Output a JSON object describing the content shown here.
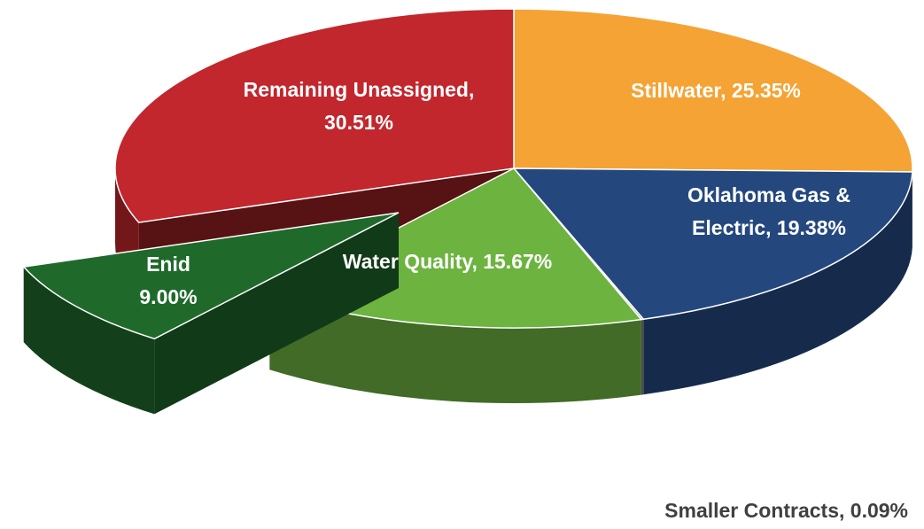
{
  "chart_data": {
    "type": "pie3d",
    "value_labels": [
      [
        "Stillwater, 25.35%"
      ],
      [
        "Oklahoma Gas &",
        "Electric, 19.38%"
      ],
      [
        "Smaller Contracts, 0.09%"
      ],
      [
        "Water Quality, 15.67%"
      ],
      [
        "Enid",
        "9.00%"
      ],
      [
        "Remaining Unassigned,",
        "30.51%"
      ]
    ],
    "values": [
      25.35,
      19.38,
      0.09,
      15.67,
      9.0,
      30.51
    ],
    "colors": [
      "#f5a334",
      "#24487e",
      "#7f7f7f",
      "#6db33f",
      "#1f6a2b",
      "#c1272d"
    ],
    "exploded": [
      4
    ]
  }
}
